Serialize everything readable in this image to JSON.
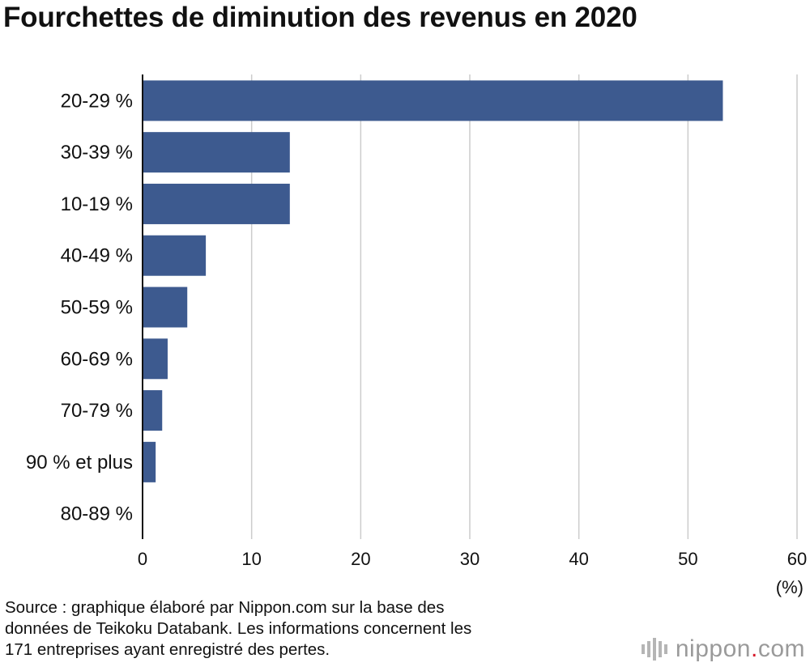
{
  "title": "Fourchettes de diminution des revenus en 2020",
  "unit_label": "(%)",
  "source_lines": [
    "Source : graphique élaboré par Nippon.com sur la base des",
    "données de Teikoku Databank. Les informations concernent les",
    "171 entreprises ayant enregistré des pertes."
  ],
  "brand": {
    "name": "nippon",
    "dot": ".",
    "tld": "com",
    "icon": "nippon-logo-bars-icon",
    "dot_color": "#d7192a"
  },
  "chart_data": {
    "type": "bar",
    "orientation": "horizontal",
    "categories": [
      "20-29 %",
      "30-39 %",
      "10-19 %",
      "40-49 %",
      "50-59 %",
      "60-69 %",
      "70-79 %",
      "90 % et plus",
      "80-89 %"
    ],
    "values": [
      53.2,
      13.5,
      13.5,
      5.8,
      4.1,
      2.3,
      1.8,
      1.2,
      0
    ],
    "xlim": [
      0,
      60
    ],
    "xticks": [
      0,
      10,
      20,
      30,
      40,
      50,
      60
    ],
    "grid": true,
    "bar_color": "#3d5a8f",
    "grid_color": "#cccccc"
  }
}
